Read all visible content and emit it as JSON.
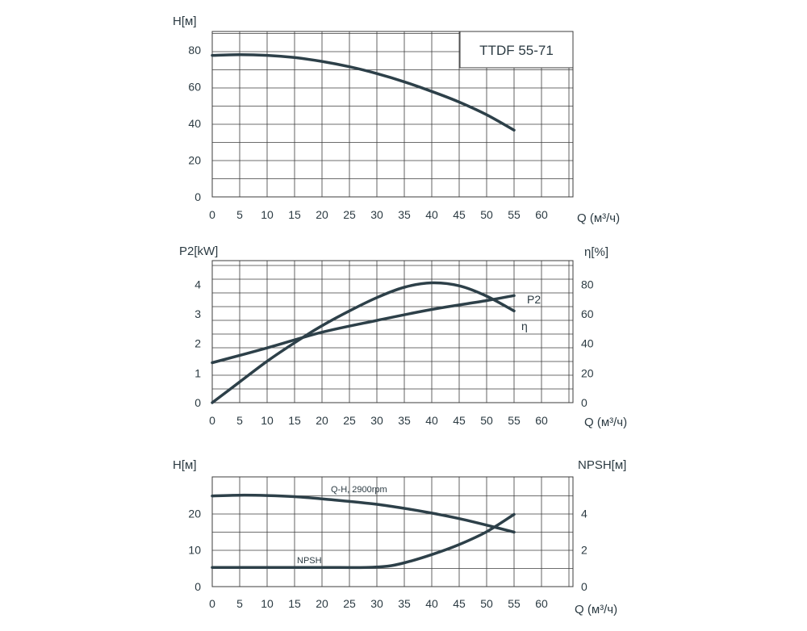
{
  "chart_data": [
    {
      "type": "line",
      "title": "TTDF 55-71",
      "xlabel": "Q (м³/ч)",
      "ylabel": "H[м]",
      "xlim": [
        0,
        65
      ],
      "ylim": [
        0,
        90
      ],
      "x_ticks": [
        "0",
        "5",
        "10",
        "15",
        "20",
        "25",
        "30",
        "35",
        "40",
        "45",
        "50",
        "55",
        "60"
      ],
      "y_ticks": [
        "0",
        "20",
        "40",
        "60",
        "80"
      ],
      "grid": true,
      "series": [
        {
          "x": [
            0,
            5,
            10,
            15,
            20,
            25,
            30,
            35,
            40,
            45,
            50,
            55
          ],
          "y": [
            77,
            77.4,
            77,
            75.8,
            73.7,
            70.8,
            67.1,
            62.6,
            57.4,
            51.6,
            44.7,
            36.3
          ]
        }
      ]
    },
    {
      "type": "line",
      "xlabel": "Q (м³/ч)",
      "ylabel": "P2[kW]",
      "y2label": "η[%]",
      "xlim": [
        0,
        65
      ],
      "ylim": [
        0,
        4.8
      ],
      "y2lim": [
        0,
        96
      ],
      "x_ticks": [
        "0",
        "5",
        "10",
        "15",
        "20",
        "25",
        "30",
        "35",
        "40",
        "45",
        "50",
        "55",
        "60"
      ],
      "y_ticks": [
        "0",
        "1",
        "2",
        "3",
        "4"
      ],
      "y2_ticks": [
        "0",
        "20",
        "40",
        "60",
        "80"
      ],
      "grid": true,
      "series": [
        {
          "name": "P2",
          "axis": "left",
          "x": [
            0,
            10,
            20,
            30,
            40,
            50,
            55
          ],
          "y": [
            1.35,
            1.85,
            2.38,
            2.78,
            3.15,
            3.45,
            3.62
          ]
        },
        {
          "name": "η",
          "axis": "right",
          "x": [
            0,
            5,
            10,
            15,
            20,
            25,
            30,
            35,
            40,
            45,
            50,
            55
          ],
          "y": [
            0,
            14,
            28,
            40.5,
            52,
            62,
            71,
            78,
            81,
            79,
            72,
            62
          ]
        }
      ]
    },
    {
      "type": "line",
      "xlabel": "Q (м³/ч)",
      "ylabel": "H[м]",
      "y2label": "NPSH[м]",
      "xlim": [
        0,
        65
      ],
      "ylim": [
        0,
        30
      ],
      "y2lim": [
        0,
        6
      ],
      "x_ticks": [
        "0",
        "5",
        "10",
        "15",
        "20",
        "25",
        "30",
        "35",
        "40",
        "45",
        "50",
        "55",
        "60"
      ],
      "y_ticks": [
        "0",
        "10",
        "20"
      ],
      "y2_ticks": [
        "0",
        "2",
        "4"
      ],
      "grid": true,
      "series": [
        {
          "name": "Q-H, 2900rpm",
          "axis": "left",
          "x": [
            0,
            5,
            10,
            15,
            20,
            25,
            30,
            35,
            40,
            45,
            50,
            55
          ],
          "y": [
            24.8,
            25.0,
            24.9,
            24.6,
            24.0,
            23.3,
            22.5,
            21.4,
            20.1,
            18.6,
            16.8,
            14.9
          ]
        },
        {
          "name": "NPSH",
          "axis": "right",
          "x": [
            0,
            10,
            20,
            28,
            32,
            35,
            40,
            45,
            50,
            55
          ],
          "y": [
            1.05,
            1.05,
            1.05,
            1.05,
            1.12,
            1.3,
            1.75,
            2.3,
            3.0,
            3.95
          ]
        }
      ]
    }
  ]
}
